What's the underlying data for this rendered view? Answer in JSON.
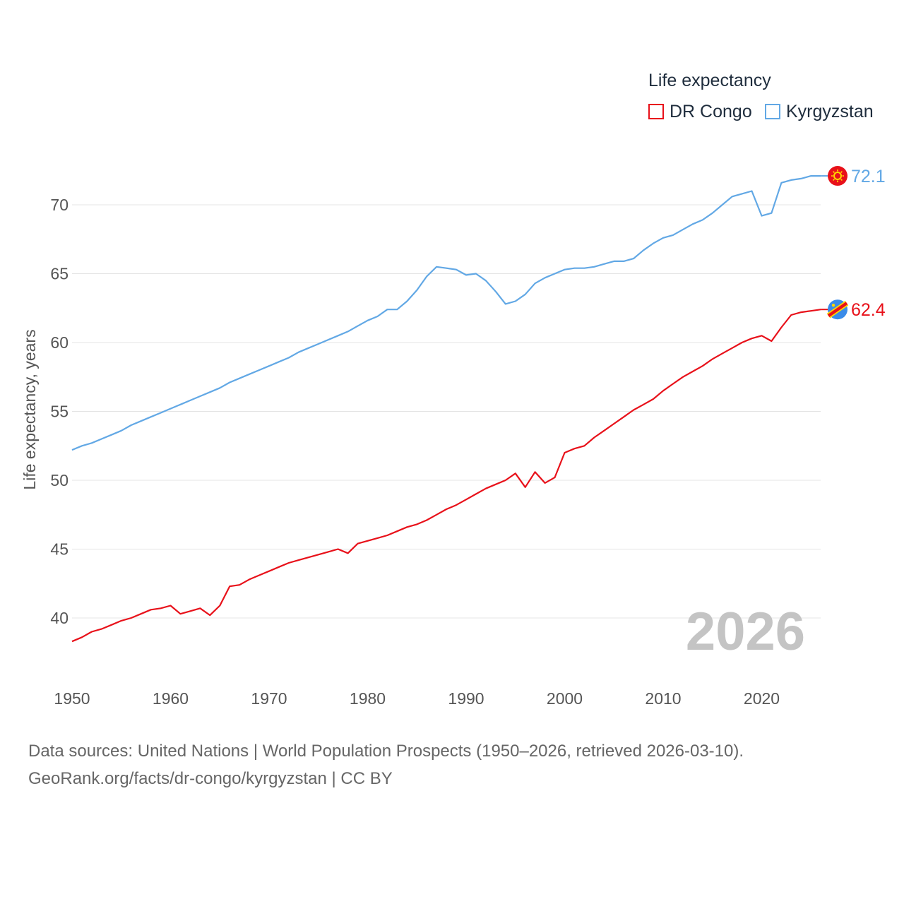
{
  "legend": {
    "title": "Life expectancy",
    "items": [
      {
        "label": "DR Congo",
        "color": "#e8111a"
      },
      {
        "label": "Kyrgyzstan",
        "color": "#62a8e5"
      }
    ]
  },
  "year_watermark": "2026",
  "sources": {
    "line1": "Data sources: United Nations | World Population Prospects (1950–2026, retrieved 2026-03-10).",
    "line2": "GeoRank.org/facts/dr-congo/kyrgyzstan | CC BY"
  },
  "chart_data": {
    "type": "line",
    "title": "Life expectancy",
    "xlabel": "",
    "ylabel": "Life expectancy, years",
    "xlim": [
      1950,
      2026
    ],
    "ylim": [
      36.5,
      74
    ],
    "x_ticks": [
      1950,
      1960,
      1970,
      1980,
      1990,
      2000,
      2010,
      2020
    ],
    "y_ticks": [
      40,
      45,
      50,
      55,
      60,
      65,
      70
    ],
    "grid": true,
    "legend_position": "top-right",
    "x": [
      1950,
      1951,
      1952,
      1953,
      1954,
      1955,
      1956,
      1957,
      1958,
      1959,
      1960,
      1961,
      1962,
      1963,
      1964,
      1965,
      1966,
      1967,
      1968,
      1969,
      1970,
      1971,
      1972,
      1973,
      1974,
      1975,
      1976,
      1977,
      1978,
      1979,
      1980,
      1981,
      1982,
      1983,
      1984,
      1985,
      1986,
      1987,
      1988,
      1989,
      1990,
      1991,
      1992,
      1993,
      1994,
      1995,
      1996,
      1997,
      1998,
      1999,
      2000,
      2001,
      2002,
      2003,
      2004,
      2005,
      2006,
      2007,
      2008,
      2009,
      2010,
      2011,
      2012,
      2013,
      2014,
      2015,
      2016,
      2017,
      2018,
      2019,
      2020,
      2021,
      2022,
      2023,
      2024,
      2025,
      2026
    ],
    "series": [
      {
        "name": "DR Congo",
        "color": "#e8111a",
        "end_label": "62.4",
        "values": [
          38.3,
          38.6,
          39.0,
          39.2,
          39.5,
          39.8,
          40.0,
          40.3,
          40.6,
          40.7,
          40.9,
          40.3,
          40.5,
          40.7,
          40.2,
          40.9,
          42.3,
          42.4,
          42.8,
          43.1,
          43.4,
          43.7,
          44.0,
          44.2,
          44.4,
          44.6,
          44.8,
          45.0,
          44.7,
          45.4,
          45.6,
          45.8,
          46.0,
          46.3,
          46.6,
          46.8,
          47.1,
          47.5,
          47.9,
          48.2,
          48.6,
          49.0,
          49.4,
          49.7,
          50.0,
          50.5,
          49.5,
          50.6,
          49.8,
          50.2,
          52.0,
          52.3,
          52.5,
          53.1,
          53.6,
          54.1,
          54.6,
          55.1,
          55.5,
          55.9,
          56.5,
          57.0,
          57.5,
          57.9,
          58.3,
          58.8,
          59.2,
          59.6,
          60.0,
          60.3,
          60.5,
          60.1,
          61.1,
          62.0,
          62.2,
          62.3,
          62.4
        ]
      },
      {
        "name": "Kyrgyzstan",
        "color": "#62a8e5",
        "end_label": "72.1",
        "values": [
          52.2,
          52.5,
          52.7,
          53.0,
          53.3,
          53.6,
          54.0,
          54.3,
          54.6,
          54.9,
          55.2,
          55.5,
          55.8,
          56.1,
          56.4,
          56.7,
          57.1,
          57.4,
          57.7,
          58.0,
          58.3,
          58.6,
          58.9,
          59.3,
          59.6,
          59.9,
          60.2,
          60.5,
          60.8,
          61.2,
          61.6,
          61.9,
          62.4,
          62.4,
          63.0,
          63.8,
          64.8,
          65.5,
          65.4,
          65.3,
          64.9,
          65.0,
          64.5,
          63.7,
          62.8,
          63.0,
          63.5,
          64.3,
          64.7,
          65.0,
          65.3,
          65.4,
          65.4,
          65.5,
          65.7,
          65.9,
          65.9,
          66.1,
          66.7,
          67.2,
          67.6,
          67.8,
          68.2,
          68.6,
          68.9,
          69.4,
          70.0,
          70.6,
          70.8,
          71.0,
          69.2,
          69.4,
          71.6,
          71.8,
          71.9,
          72.1,
          72.1
        ]
      }
    ]
  }
}
